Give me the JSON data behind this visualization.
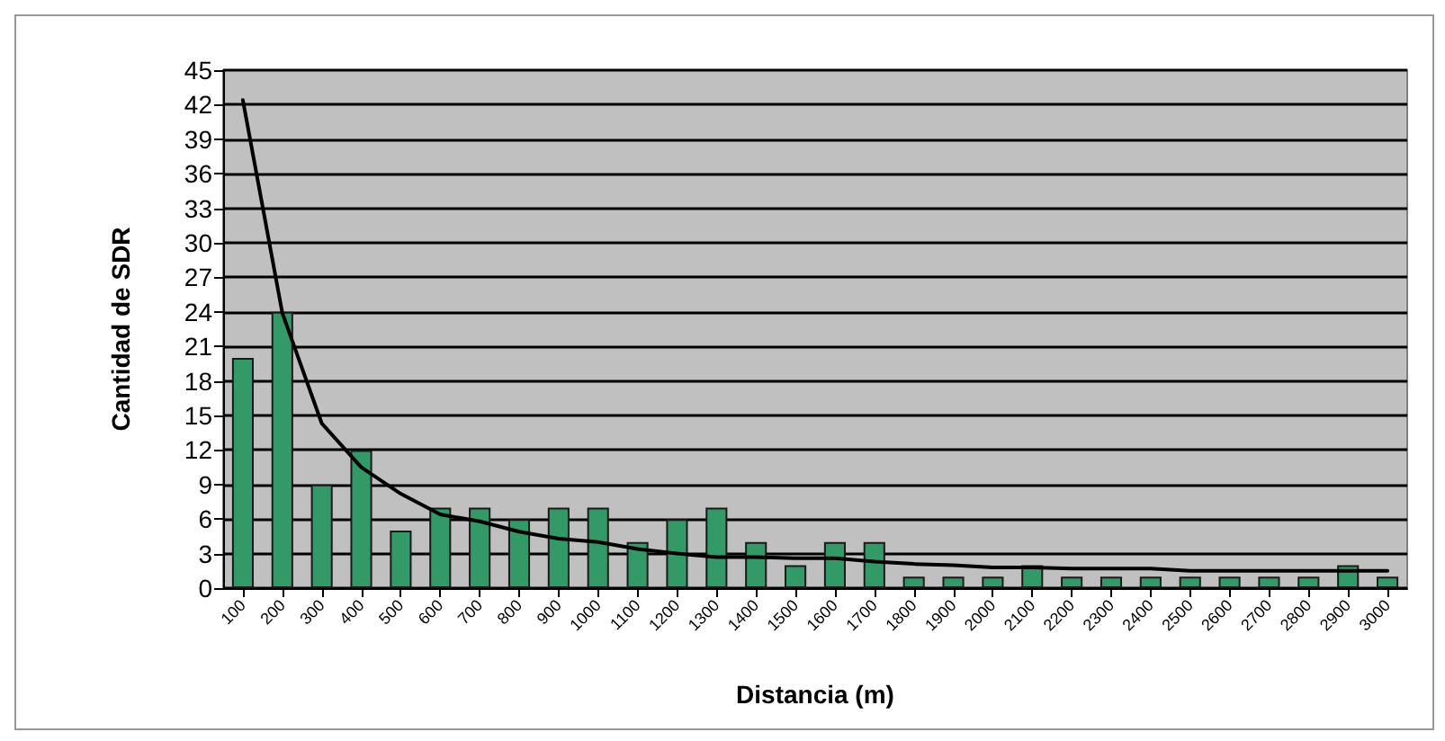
{
  "chart_data": {
    "type": "bar",
    "xlabel": "Distancia (m)",
    "ylabel": "Cantidad de SDR",
    "categories": [
      "100",
      "200",
      "300",
      "400",
      "500",
      "600",
      "700",
      "800",
      "900",
      "1000",
      "1100",
      "1200",
      "1300",
      "1400",
      "1500",
      "1600",
      "1700",
      "1800",
      "1900",
      "2000",
      "2100",
      "2200",
      "2300",
      "2400",
      "2500",
      "2600",
      "2700",
      "2800",
      "2900",
      "3000"
    ],
    "series": [
      {
        "color": "#339966",
        "values": [
          20,
          24,
          9,
          12,
          5,
          7,
          7,
          6,
          7,
          7,
          4,
          6,
          7,
          4,
          2,
          4,
          4,
          1,
          1,
          1,
          2,
          1,
          1,
          1,
          1,
          1,
          1,
          1,
          2,
          1
        ]
      },
      {
        "type": "line",
        "color": "#000000",
        "marker": "none",
        "line_style": "solid",
        "values": [
          42.4,
          23.9,
          14.3,
          10.5,
          8.2,
          6.4,
          5.8,
          4.9,
          4.3,
          4,
          3.4,
          3,
          2.7,
          2.7,
          2.6,
          2.6,
          2.3,
          2.1,
          2,
          1.8,
          1.8,
          1.7,
          1.7,
          1.7,
          1.5,
          1.5,
          1.5,
          1.5,
          1.5,
          1.5
        ]
      }
    ],
    "ylim": [
      0,
      45
    ],
    "yticks": [
      0,
      3,
      6,
      9,
      12,
      15,
      18,
      21,
      24,
      27,
      30,
      33,
      36,
      39,
      42,
      45
    ],
    "grid": "y"
  }
}
